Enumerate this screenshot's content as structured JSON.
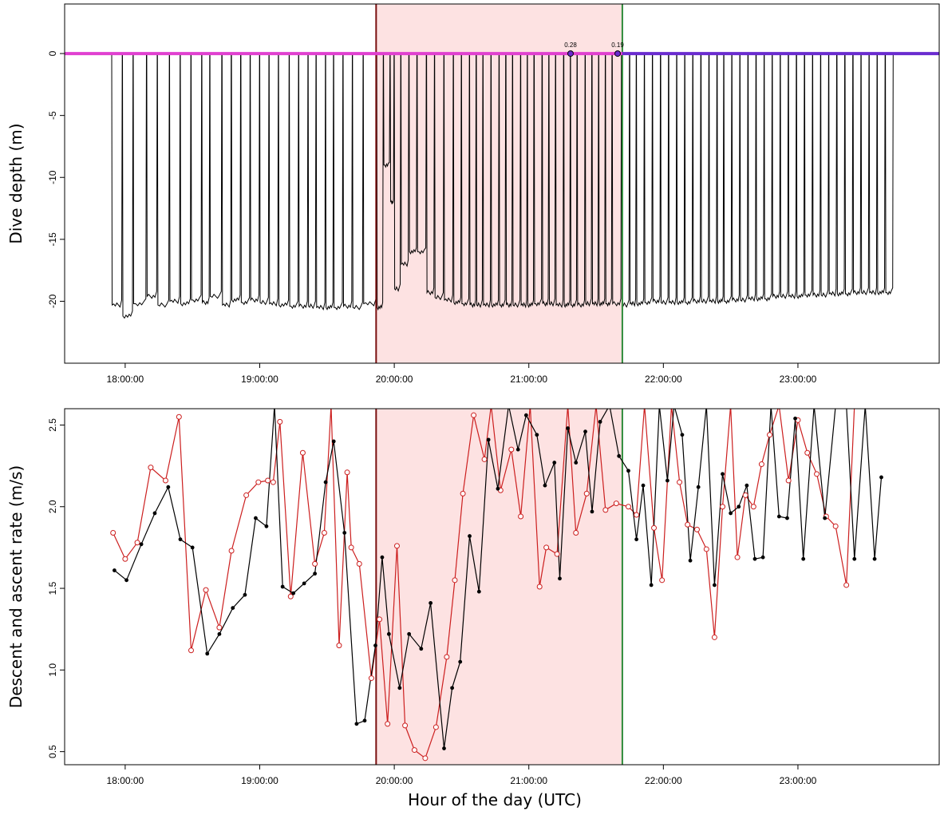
{
  "figure": {
    "xlabel": "Hour of the day (UTC)",
    "x_ticks": [
      "18:00:00",
      "19:00:00",
      "20:00:00",
      "21:00:00",
      "22:00:00",
      "23:00:00"
    ],
    "x_tick_hours": [
      18,
      19,
      20,
      21,
      22,
      23
    ],
    "xlim_hours": [
      17.55,
      24.05
    ],
    "event_start_hour": 19.865,
    "event_end_hour": 21.695,
    "colors": {
      "shade": "#fde2e2",
      "event_start_line": "#7a1010",
      "event_end_line": "#2e8b3a",
      "surface_line_left": "#e040d0",
      "surface_line_right": "#6a2bcf",
      "depth_trace": "#000000",
      "descent_series": "#000000",
      "ascent_series": "#cc1f1f"
    }
  },
  "chart_data": [
    {
      "type": "line",
      "ylabel": "Dive depth (m)",
      "ylim": [
        -25,
        4
      ],
      "y_ticks": [
        "0",
        "-5",
        "-10",
        "-15",
        "-20"
      ],
      "y_tick_values": [
        0,
        -5,
        -10,
        -15,
        -20
      ],
      "annotations": [
        {
          "text": "0.28",
          "x_hour": 21.31,
          "y": 0
        },
        {
          "text": "0.19",
          "x_hour": 21.66,
          "y": 0
        }
      ],
      "series": [
        {
          "dive_start_hours": [
            17.9,
            17.98,
            18.06,
            18.16,
            18.24,
            18.33,
            18.41,
            18.49,
            18.57,
            18.63,
            18.72,
            18.79,
            18.86,
            18.93,
            19.0,
            19.07,
            19.14,
            19.22,
            19.29,
            19.36,
            19.42,
            19.49,
            19.55,
            19.62,
            19.69,
            19.77,
            19.87,
            19.92,
            19.97,
            20.0,
            20.05,
            20.11,
            20.17,
            20.24,
            20.3,
            20.37,
            20.44,
            20.5,
            20.56,
            20.61,
            20.66,
            20.72,
            20.78,
            20.83,
            20.88,
            20.94,
            20.99,
            21.04,
            21.1,
            21.15,
            21.2,
            21.26,
            21.31,
            21.36,
            21.42,
            21.47,
            21.52,
            21.57,
            21.62,
            21.69,
            21.75,
            21.8,
            21.86,
            21.92,
            21.98,
            22.04,
            22.1,
            22.16,
            22.22,
            22.28,
            22.34,
            22.4,
            22.45,
            22.51,
            22.57,
            22.63,
            22.69,
            22.75,
            22.81,
            22.87,
            22.93,
            22.99,
            23.05,
            23.11,
            23.17,
            23.23,
            23.29,
            23.35,
            23.41,
            23.47,
            23.53,
            23.59,
            23.65
          ],
          "dive_depths": [
            -20.3,
            -21.2,
            -20.2,
            -19.6,
            -20.3,
            -20.0,
            -20.2,
            -19.9,
            -20.1,
            -19.6,
            -20.3,
            -19.9,
            -20.1,
            -19.9,
            -20.1,
            -20.2,
            -20.3,
            -20.4,
            -20.4,
            -20.4,
            -20.5,
            -20.5,
            -20.5,
            -20.4,
            -20.5,
            -20.2,
            -20.5,
            -9.0,
            -12.0,
            -19.0,
            -17.0,
            -16.0,
            -16.0,
            -19.3,
            -19.7,
            -19.9,
            -20.1,
            -20.2,
            -20.3,
            -20.3,
            -20.3,
            -20.3,
            -20.3,
            -20.3,
            -20.3,
            -20.3,
            -20.3,
            -20.2,
            -20.2,
            -20.2,
            -20.3,
            -20.3,
            -20.3,
            -20.3,
            -20.2,
            -20.2,
            -20.2,
            -20.2,
            -20.2,
            -20.3,
            -20.2,
            -20.2,
            -20.1,
            -20.0,
            -20.1,
            -20.1,
            -20.1,
            -20.1,
            -20.0,
            -20.0,
            -20.0,
            -20.0,
            -20.0,
            -19.9,
            -19.9,
            -19.8,
            -19.8,
            -19.8,
            -19.6,
            -19.6,
            -19.6,
            -19.6,
            -19.5,
            -19.5,
            -19.5,
            -19.4,
            -19.4,
            -19.4,
            -19.3,
            -19.3,
            -19.3,
            -19.3,
            -19.3
          ]
        }
      ]
    },
    {
      "type": "scatter",
      "ylabel": "Descent and ascent rate (m/s)",
      "ylim": [
        0.42,
        2.6
      ],
      "y_ticks": [
        "0.5",
        "1.0",
        "1.5",
        "2.0",
        "2.5"
      ],
      "y_tick_values": [
        0.5,
        1.0,
        1.5,
        2.0,
        2.5
      ],
      "series": [
        {
          "marker": "filled",
          "x_hours": [
            17.92,
            18.01,
            18.12,
            18.22,
            18.32,
            18.41,
            18.5,
            18.61,
            18.7,
            18.8,
            18.89,
            18.97,
            19.05,
            19.11,
            19.17,
            19.25,
            19.33,
            19.41,
            19.49,
            19.55,
            19.63,
            19.72,
            19.78,
            19.86,
            19.91,
            19.96,
            20.04,
            20.11,
            20.2,
            20.27,
            20.37,
            20.43,
            20.49,
            20.56,
            20.63,
            20.7,
            20.77,
            20.85,
            20.92,
            20.98,
            21.06,
            21.12,
            21.19,
            21.23,
            21.29,
            21.35,
            21.42,
            21.47,
            21.53,
            21.6,
            21.67,
            21.74,
            21.8,
            21.85,
            21.91,
            21.97,
            22.03,
            22.08,
            22.14,
            22.2,
            22.26,
            22.32,
            22.38,
            22.44,
            22.5,
            22.56,
            22.62,
            22.68,
            22.74,
            22.8,
            22.86,
            22.92,
            22.98,
            23.04,
            23.12,
            23.2,
            23.28,
            23.36,
            23.42,
            23.5,
            23.57,
            23.62
          ],
          "values": [
            1.61,
            1.55,
            1.77,
            1.96,
            2.12,
            1.8,
            1.75,
            1.1,
            1.22,
            1.38,
            1.46,
            1.93,
            1.88,
            2.62,
            1.51,
            1.47,
            1.53,
            1.59,
            2.15,
            2.4,
            1.84,
            0.67,
            0.69,
            1.15,
            1.69,
            1.22,
            0.89,
            1.22,
            1.13,
            1.41,
            0.52,
            0.89,
            1.05,
            1.82,
            1.48,
            2.41,
            2.11,
            2.62,
            2.35,
            2.56,
            2.44,
            2.13,
            2.27,
            1.56,
            2.48,
            2.27,
            2.46,
            1.97,
            2.52,
            2.62,
            2.31,
            2.22,
            1.8,
            2.13,
            1.52,
            2.62,
            2.16,
            2.62,
            2.44,
            1.67,
            2.12,
            2.62,
            1.52,
            2.2,
            1.96,
            2.0,
            2.13,
            1.68,
            1.69,
            2.62,
            1.94,
            1.93,
            2.54,
            1.68,
            2.62,
            1.93,
            2.62,
            2.62,
            1.68,
            2.62,
            1.68,
            2.18
          ]
        },
        {
          "marker": "open",
          "x_hours": [
            17.91,
            18.0,
            18.09,
            18.19,
            18.3,
            18.4,
            18.49,
            18.6,
            18.7,
            18.79,
            18.9,
            18.99,
            19.06,
            19.1,
            19.15,
            19.23,
            19.32,
            19.41,
            19.48,
            19.53,
            19.59,
            19.65,
            19.68,
            19.74,
            19.83,
            19.89,
            19.95,
            20.02,
            20.08,
            20.15,
            20.23,
            20.31,
            20.39,
            20.45,
            20.51,
            20.59,
            20.67,
            20.72,
            20.79,
            20.87,
            20.94,
            21.01,
            21.08,
            21.13,
            21.21,
            21.29,
            21.35,
            21.43,
            21.5,
            21.57,
            21.65,
            21.74,
            21.8,
            21.86,
            21.93,
            21.99,
            22.06,
            22.12,
            22.18,
            22.25,
            22.32,
            22.38,
            22.44,
            22.5,
            22.55,
            22.61,
            22.67,
            22.73,
            22.79,
            22.86,
            22.93,
            23.0,
            23.07,
            23.14,
            23.21,
            23.28,
            23.36,
            23.42,
            23.48,
            23.56,
            23.62,
            23.66
          ],
          "values": [
            1.84,
            1.68,
            1.78,
            2.24,
            2.16,
            2.55,
            1.12,
            1.49,
            1.26,
            1.73,
            2.07,
            2.15,
            2.16,
            2.15,
            2.52,
            1.45,
            2.33,
            1.65,
            1.84,
            2.62,
            1.15,
            2.21,
            1.75,
            1.65,
            0.95,
            1.31,
            0.67,
            1.76,
            0.66,
            0.51,
            0.46,
            0.65,
            1.08,
            1.55,
            2.08,
            2.56,
            2.29,
            2.62,
            2.1,
            2.35,
            1.94,
            2.62,
            1.51,
            1.75,
            1.71,
            2.62,
            1.84,
            2.08,
            2.62,
            1.98,
            2.02,
            2.0,
            1.95,
            2.62,
            1.87,
            1.55,
            2.62,
            2.15,
            1.89,
            1.86,
            1.74,
            1.2,
            2.0,
            2.62,
            1.69,
            2.07,
            2.0,
            2.26,
            2.44,
            2.62,
            2.16,
            2.53,
            2.33,
            2.2,
            1.94,
            1.88,
            1.52,
            2.62,
            2.62,
            2.62,
            2.62,
            2.62
          ]
        }
      ]
    }
  ]
}
